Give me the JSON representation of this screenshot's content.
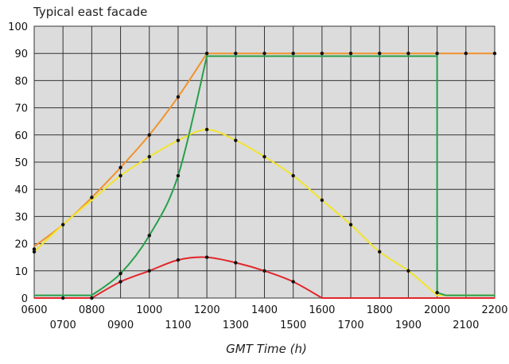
{
  "chart_data": {
    "type": "line",
    "title": "Typical east facade",
    "xlabel": "GMT Time (h)",
    "ylabel": "",
    "x": [
      "0600",
      "0700",
      "0800",
      "0900",
      "1000",
      "1100",
      "1200",
      "1300",
      "1400",
      "1500",
      "1600",
      "1700",
      "1800",
      "1900",
      "2000",
      "2100",
      "2200"
    ],
    "xlim": [
      0,
      16
    ],
    "ylim": [
      0,
      100
    ],
    "yticks": [
      0,
      10,
      20,
      30,
      40,
      50,
      60,
      70,
      80,
      90,
      100
    ],
    "grid": true,
    "legend": "none",
    "background": "#dcdcdc",
    "series": [
      {
        "color": "#f0922d",
        "values": [
          19,
          27,
          37,
          48,
          60,
          74,
          90,
          90,
          90,
          90,
          90,
          90,
          90,
          90,
          90,
          90,
          90
        ]
      },
      {
        "color": "#f2e52a",
        "values": [
          17,
          27,
          36,
          45,
          52,
          58,
          62,
          58,
          52,
          45,
          36,
          27,
          17,
          10,
          1,
          1,
          1
        ]
      },
      {
        "color": "#27a04a",
        "values": [
          1,
          1,
          1,
          9,
          23,
          45,
          89,
          89,
          89,
          89,
          89,
          89,
          89,
          89,
          89,
          1,
          1
        ]
      },
      {
        "color": "#e2262a",
        "values": [
          0,
          0,
          0,
          6,
          10,
          14,
          15,
          13,
          10,
          6,
          0,
          0,
          0,
          0,
          0,
          0,
          0
        ]
      }
    ],
    "markers": {
      "color": "#111111",
      "points": [
        [
          0,
          18
        ],
        [
          0,
          17
        ],
        [
          1,
          27
        ],
        [
          2,
          37
        ],
        [
          3,
          48
        ],
        [
          3,
          45
        ],
        [
          4,
          60
        ],
        [
          4,
          52
        ],
        [
          5,
          74
        ],
        [
          5,
          58
        ],
        [
          6,
          90
        ],
        [
          6,
          62
        ],
        [
          7,
          90
        ],
        [
          7,
          58
        ],
        [
          8,
          90
        ],
        [
          8,
          52
        ],
        [
          9,
          90
        ],
        [
          9,
          45
        ],
        [
          10,
          90
        ],
        [
          10,
          36
        ],
        [
          11,
          90
        ],
        [
          11,
          27
        ],
        [
          12,
          90
        ],
        [
          12,
          17
        ],
        [
          13,
          90
        ],
        [
          13,
          10
        ],
        [
          14,
          90
        ],
        [
          14,
          2
        ],
        [
          15,
          90
        ],
        [
          16,
          90
        ],
        [
          1,
          0
        ],
        [
          2,
          0
        ],
        [
          3,
          9
        ],
        [
          3,
          6
        ],
        [
          4,
          23
        ],
        [
          4,
          10
        ],
        [
          5,
          45
        ],
        [
          5,
          14
        ],
        [
          6,
          15
        ],
        [
          7,
          13
        ],
        [
          8,
          10
        ],
        [
          9,
          6
        ]
      ]
    }
  }
}
